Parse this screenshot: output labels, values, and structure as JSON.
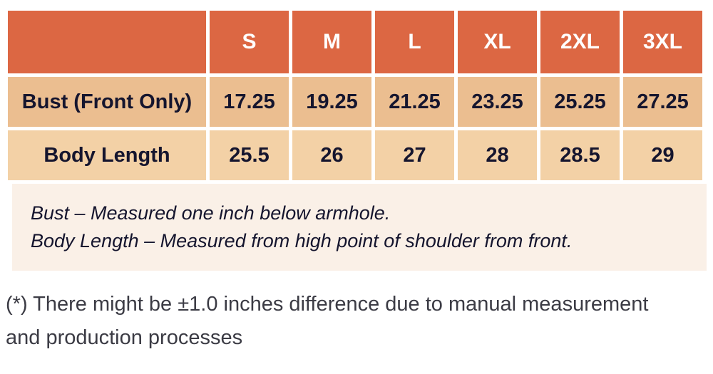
{
  "table": {
    "sizes": [
      "S",
      "M",
      "L",
      "XL",
      "2XL",
      "3XL"
    ],
    "rows": [
      {
        "label": "Bust (Front Only)",
        "values": [
          "17.25",
          "19.25",
          "21.25",
          "23.25",
          "25.25",
          "27.25"
        ]
      },
      {
        "label": "Body Length",
        "values": [
          "25.5",
          "26",
          "27",
          "28",
          "28.5",
          "29"
        ]
      }
    ],
    "notes": [
      "Bust – Measured one inch below armhole.",
      "Body Length – Measured from high point of shoulder from front."
    ]
  },
  "footnote": {
    "text": "(*) There might be ±1.0 inches difference due to manual measurement and production processes"
  },
  "colors": {
    "header_bg": "#DC6743",
    "row_bust_bg": "#EBBE90",
    "row_body_length_bg": "#F3D1A6",
    "notes_band_bg": "#FAF0E7",
    "header_text": "#FFFFFF",
    "cell_text": "#15152E",
    "footnote_text": "#3B3B44"
  }
}
